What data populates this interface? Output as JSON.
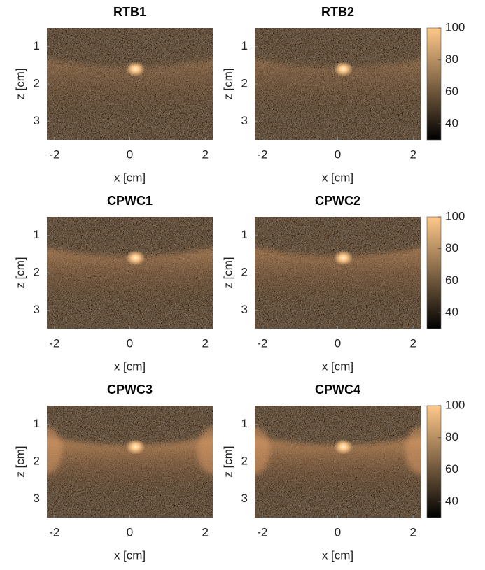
{
  "chart_data": [
    {
      "type": "image",
      "title": "RTB1",
      "xlabel": "x [cm]",
      "ylabel": "z [cm]",
      "xlim": [
        -2.2,
        2.2
      ],
      "ylim": [
        3.5,
        0.5
      ],
      "xticks": [
        -2,
        0,
        2
      ],
      "yticks": [
        1,
        2,
        3
      ],
      "colormap": [
        "#000000",
        "#ffc98a"
      ]
    },
    {
      "type": "image",
      "title": "RTB2",
      "xlabel": "x [cm]",
      "ylabel": "z [cm]",
      "xlim": [
        -2.2,
        2.2
      ],
      "ylim": [
        3.5,
        0.5
      ],
      "xticks": [
        -2,
        0,
        2
      ],
      "yticks": [
        1,
        2,
        3
      ],
      "colormap": [
        "#000000",
        "#ffc98a"
      ],
      "colorbar": {
        "lim": [
          30,
          100
        ],
        "ticks": [
          40,
          60,
          80,
          100
        ]
      }
    },
    {
      "type": "image",
      "title": "CPWC1",
      "xlabel": "x [cm]",
      "ylabel": "z [cm]",
      "xlim": [
        -2.2,
        2.2
      ],
      "ylim": [
        3.5,
        0.5
      ],
      "xticks": [
        -2,
        0,
        2
      ],
      "yticks": [
        1,
        2,
        3
      ],
      "colormap": [
        "#000000",
        "#ffc98a"
      ]
    },
    {
      "type": "image",
      "title": "CPWC2",
      "xlabel": "x [cm]",
      "ylabel": "z [cm]",
      "xlim": [
        -2.2,
        2.2
      ],
      "ylim": [
        3.5,
        0.5
      ],
      "xticks": [
        -2,
        0,
        2
      ],
      "yticks": [
        1,
        2,
        3
      ],
      "colormap": [
        "#000000",
        "#ffc98a"
      ],
      "colorbar": {
        "lim": [
          30,
          100
        ],
        "ticks": [
          40,
          60,
          80,
          100
        ]
      }
    },
    {
      "type": "image",
      "title": "CPWC3",
      "xlabel": "x [cm]",
      "ylabel": "z [cm]",
      "xlim": [
        -2.2,
        2.2
      ],
      "ylim": [
        3.5,
        0.5
      ],
      "xticks": [
        -2,
        0,
        2
      ],
      "yticks": [
        1,
        2,
        3
      ],
      "colormap": [
        "#000000",
        "#ffc98a"
      ]
    },
    {
      "type": "image",
      "title": "CPWC4",
      "xlabel": "x [cm]",
      "ylabel": "z [cm]",
      "xlim": [
        -2.2,
        2.2
      ],
      "ylim": [
        3.5,
        0.5
      ],
      "xticks": [
        -2,
        0,
        2
      ],
      "yticks": [
        1,
        2,
        3
      ],
      "colormap": [
        "#000000",
        "#ffc98a"
      ],
      "colorbar": {
        "lim": [
          30,
          100
        ],
        "ticks": [
          40,
          60,
          80,
          100
        ]
      }
    }
  ]
}
